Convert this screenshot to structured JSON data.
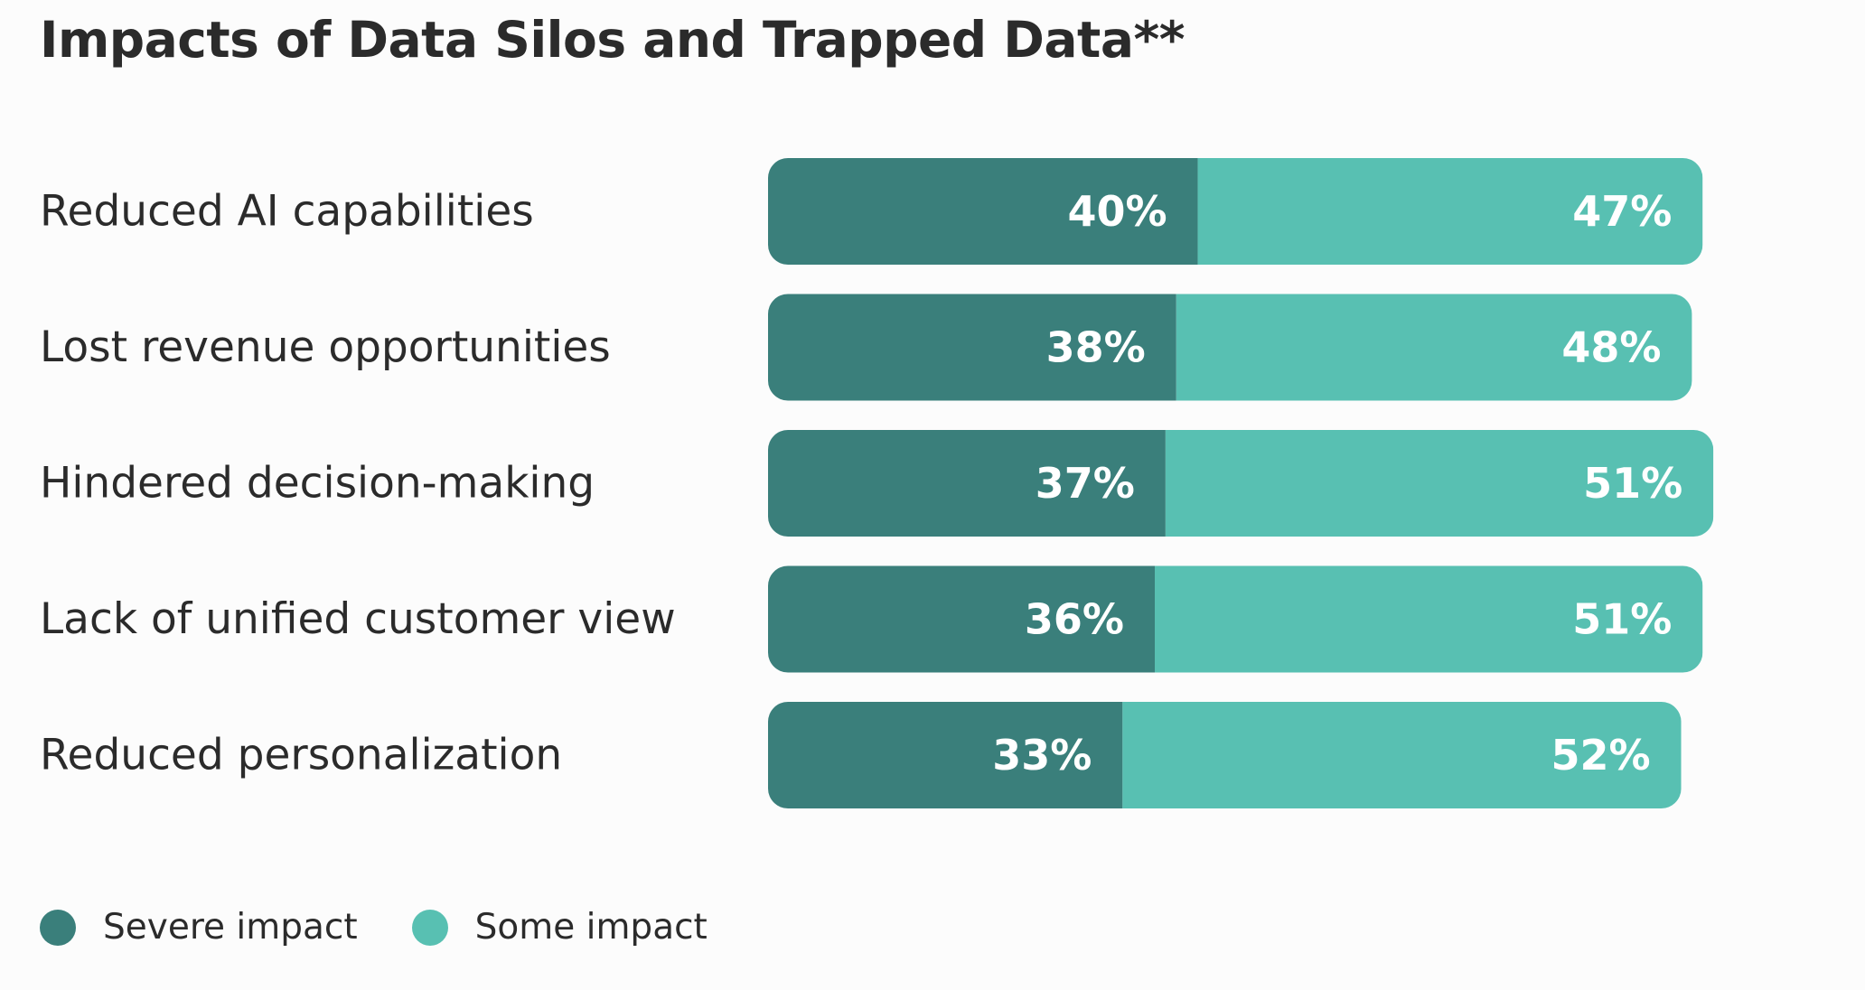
{
  "colors": {
    "severe": "#3a7f7b",
    "some": "#58c0b2",
    "background": "#fcfcfc",
    "text": "#2b2b2b"
  },
  "chart_data": {
    "type": "bar",
    "orientation": "horizontal",
    "stacked": true,
    "title": "Impacts of Data Silos and Trapped Data**",
    "categories": [
      "Reduced AI capabilities",
      "Lost revenue opportunities",
      "Hindered decision-making",
      "Lack of unified customer view",
      "Reduced personalization"
    ],
    "series": [
      {
        "name": "Severe impact",
        "values": [
          40,
          38,
          37,
          36,
          33
        ],
        "labels": [
          "40%",
          "38%",
          "37%",
          "36%",
          "33%"
        ]
      },
      {
        "name": "Some impact",
        "values": [
          47,
          48,
          51,
          51,
          52
        ],
        "labels": [
          "47%",
          "48%",
          "51%",
          "51%",
          "52%"
        ]
      }
    ],
    "xlim": [
      0,
      100
    ],
    "grid": false,
    "legend_position": "bottom-left"
  }
}
